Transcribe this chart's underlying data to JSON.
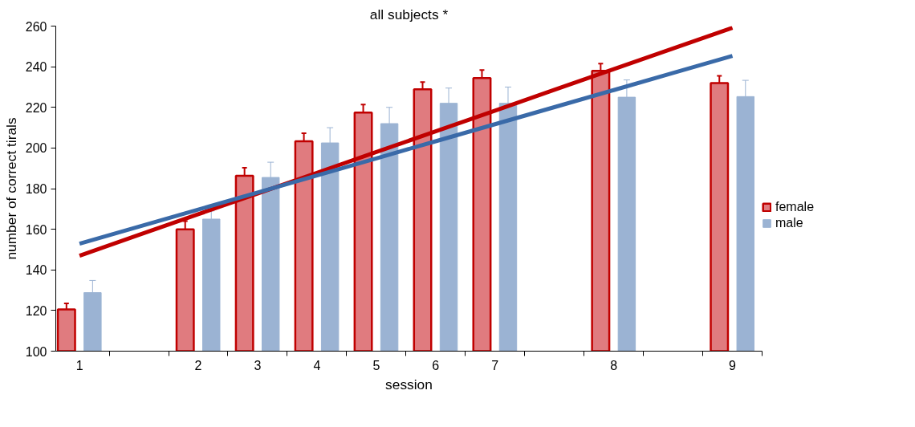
{
  "chart_data": {
    "type": "bar",
    "title": "all subjects *",
    "xlabel": "session",
    "ylabel": "number of correct tirals",
    "categories": [
      "1",
      null,
      "2",
      "3",
      "4",
      "5",
      "6",
      "7",
      null,
      "8",
      null,
      "9"
    ],
    "ylim": [
      100,
      260
    ],
    "yticks": [
      100,
      120,
      140,
      160,
      180,
      200,
      220,
      240,
      260
    ],
    "grid": false,
    "legend": "right",
    "series": [
      {
        "name": "female",
        "color": "#e07b7f",
        "values": [
          120.5,
          null,
          160,
          186.3,
          203.3,
          217.4,
          228.9,
          234.4,
          null,
          238,
          null,
          232
        ],
        "errors": [
          3,
          null,
          4,
          4,
          4,
          4,
          3.5,
          4,
          null,
          3.5,
          null,
          3.5
        ]
      },
      {
        "name": "male",
        "color": "#9bb3d3",
        "values": [
          128.8,
          null,
          165,
          185.5,
          202.5,
          212,
          222,
          222,
          null,
          225,
          null,
          225.3
        ],
        "errors": [
          6,
          null,
          4,
          7.5,
          7.5,
          8,
          7.5,
          8,
          null,
          8.5,
          null,
          8
        ]
      },
      {
        "type": "line",
        "color": "#c00000",
        "values": [
          147,
          157.2,
          167.4,
          177.6,
          187.8,
          198,
          208.2,
          218.4,
          228.6,
          238.8,
          249,
          259.2
        ]
      },
      {
        "type": "line",
        "color": "#3a6aa8",
        "values": [
          152.9,
          161.3,
          169.7,
          178.1,
          186.5,
          194.9,
          203.3,
          211.7,
          220.1,
          228.5,
          236.9,
          245.3
        ]
      }
    ]
  }
}
